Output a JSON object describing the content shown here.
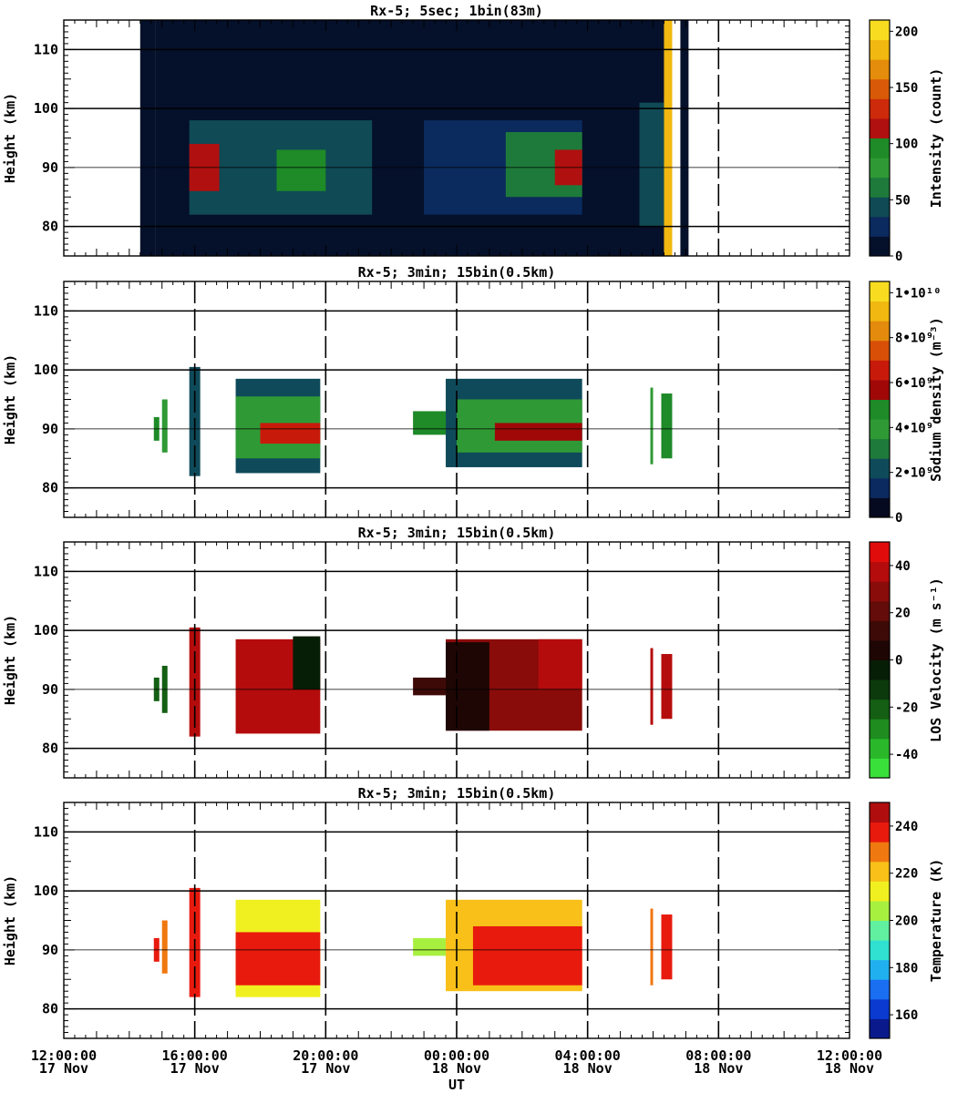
{
  "chart_data": [
    {
      "type": "heatmap",
      "title": "Rx-5;  5sec; 1bin(83m)",
      "ylabel": "Height (km)",
      "ylim": [
        75,
        115
      ],
      "yticks": [
        80,
        90,
        100,
        110
      ],
      "colorbar": {
        "label": "Intensity (count)",
        "range": [
          0,
          210
        ],
        "ticks": [
          "0",
          "50",
          "100",
          "150",
          "200"
        ],
        "tick_values": [
          0,
          50,
          100,
          150,
          200
        ],
        "colors": [
          "#05102a",
          "#0b2a5e",
          "#0f4a55",
          "#1e7a3a",
          "#2f9a35",
          "#1e8a28",
          "#b01010",
          "#cc2a0a",
          "#d85a08",
          "#e48c0c",
          "#f0b810",
          "#f8dc20"
        ]
      },
      "dashed_time_lines": [
        "2008-11-18T08:00"
      ],
      "regions": [
        {
          "x": [
            "2008-11-17T14:20",
            "2008-11-17T14:48"
          ],
          "y": [
            75,
            115
          ],
          "level": 6
        },
        {
          "x": [
            "2008-11-17T14:48",
            "2008-11-18T06:20"
          ],
          "y": [
            75,
            115
          ],
          "level": 3
        },
        {
          "x": [
            "2008-11-17T15:50",
            "2008-11-17T21:25"
          ],
          "y": [
            82,
            98
          ],
          "level": 35
        },
        {
          "x": [
            "2008-11-17T15:50",
            "2008-11-17T16:45"
          ],
          "y": [
            86,
            94
          ],
          "level": 110
        },
        {
          "x": [
            "2008-11-17T18:30",
            "2008-11-17T20:00"
          ],
          "y": [
            86,
            93
          ],
          "level": 95
        },
        {
          "x": [
            "2008-11-17T23:00",
            "2008-11-18T03:50"
          ],
          "y": [
            82,
            98
          ],
          "level": 25
        },
        {
          "x": [
            "2008-11-18T01:30",
            "2008-11-18T03:50"
          ],
          "y": [
            85,
            96
          ],
          "level": 60
        },
        {
          "x": [
            "2008-11-18T03:00",
            "2008-11-18T03:50"
          ],
          "y": [
            87,
            93
          ],
          "level": 115
        },
        {
          "x": [
            "2008-11-18T05:35",
            "2008-11-18T06:20"
          ],
          "y": [
            80,
            101
          ],
          "level": 45
        },
        {
          "x": [
            "2008-11-18T06:20",
            "2008-11-18T06:35"
          ],
          "y": [
            75,
            115
          ],
          "level": 190
        },
        {
          "x": [
            "2008-11-18T06:50",
            "2008-11-18T07:05"
          ],
          "y": [
            75,
            115
          ],
          "level": 0
        }
      ]
    },
    {
      "type": "heatmap",
      "title": "Rx-5; 3min; 15bin(0.5km)",
      "ylabel": "Height (km)",
      "ylim": [
        75,
        115
      ],
      "yticks": [
        80,
        90,
        100,
        110
      ],
      "colorbar": {
        "label": "Sodium density (m⁻³)",
        "range": [
          0,
          10.5
        ],
        "unit": "1e9 m^-3",
        "ticks": [
          "0",
          "2•10⁹",
          "4•10⁹",
          "6•10⁹",
          "8•10⁹",
          "1•10¹⁰"
        ],
        "tick_values": [
          0,
          2,
          4,
          6,
          8,
          10
        ],
        "colors": [
          "#050a20",
          "#0b2a60",
          "#0f4a5a",
          "#1e7a3a",
          "#2f9a35",
          "#1e8a28",
          "#a00808",
          "#c81a0a",
          "#d85008",
          "#e48a0c",
          "#f0b810",
          "#f8dc20"
        ]
      },
      "dashed_time_lines": [
        "2008-11-17T16:00",
        "2008-11-17T20:00",
        "2008-11-18T00:00",
        "2008-11-18T04:00",
        "2008-11-18T08:00"
      ],
      "regions": [
        {
          "x": [
            "2008-11-17T14:45",
            "2008-11-17T14:55"
          ],
          "y": [
            88,
            92
          ],
          "level": 4.5
        },
        {
          "x": [
            "2008-11-17T15:00",
            "2008-11-17T15:10"
          ],
          "y": [
            86,
            95
          ],
          "level": 4.0
        },
        {
          "x": [
            "2008-11-17T15:50",
            "2008-11-17T16:10"
          ],
          "y": [
            82,
            100.5
          ],
          "level": 2.5
        },
        {
          "x": [
            "2008-11-17T17:15",
            "2008-11-17T19:50"
          ],
          "y": [
            82.5,
            98.5
          ],
          "level": 2.0
        },
        {
          "x": [
            "2008-11-17T17:15",
            "2008-11-17T19:50"
          ],
          "y": [
            85,
            95.5
          ],
          "level": 3.5
        },
        {
          "x": [
            "2008-11-17T18:00",
            "2008-11-17T19:50"
          ],
          "y": [
            87.5,
            91
          ],
          "level": 6.5
        },
        {
          "x": [
            "2008-11-17T22:40",
            "2008-11-17T23:40"
          ],
          "y": [
            89,
            93
          ],
          "level": 4.5
        },
        {
          "x": [
            "2008-11-17T23:40",
            "2008-11-18T03:50"
          ],
          "y": [
            83.5,
            98.5
          ],
          "level": 2.0
        },
        {
          "x": [
            "2008-11-18T00:00",
            "2008-11-18T03:50"
          ],
          "y": [
            86,
            95
          ],
          "level": 3.5
        },
        {
          "x": [
            "2008-11-18T01:10",
            "2008-11-18T03:50"
          ],
          "y": [
            88,
            91
          ],
          "level": 6.0
        },
        {
          "x": [
            "2008-11-18T05:55",
            "2008-11-18T06:00"
          ],
          "y": [
            84,
            97
          ],
          "level": 4.0
        },
        {
          "x": [
            "2008-11-18T06:15",
            "2008-11-18T06:35"
          ],
          "y": [
            85,
            96
          ],
          "level": 4.5
        }
      ]
    },
    {
      "type": "heatmap",
      "title": "Rx-5; 3min; 15bin(0.5km)",
      "ylabel": "Height (km)",
      "ylim": [
        75,
        115
      ],
      "yticks": [
        80,
        90,
        100,
        110
      ],
      "colorbar": {
        "label": "LOS Velocity (m s⁻¹)",
        "range": [
          -50,
          50
        ],
        "ticks": [
          "-40",
          "-20",
          "0",
          "20",
          "40"
        ],
        "tick_values": [
          -40,
          -20,
          0,
          20,
          40
        ],
        "colors": [
          "#3ae03a",
          "#2ab82a",
          "#1e8c1e",
          "#145f14",
          "#0c3a0c",
          "#061e06",
          "#1e0604",
          "#3e0a08",
          "#640c0a",
          "#8a0c0a",
          "#b40c0c",
          "#e00c0c"
        ]
      },
      "dashed_time_lines": [
        "2008-11-17T16:00",
        "2008-11-17T20:00",
        "2008-11-18T00:00",
        "2008-11-18T04:00",
        "2008-11-18T08:00"
      ],
      "regions": [
        {
          "x": [
            "2008-11-17T14:45",
            "2008-11-17T14:55"
          ],
          "y": [
            88,
            92
          ],
          "level": -25
        },
        {
          "x": [
            "2008-11-17T15:00",
            "2008-11-17T15:10"
          ],
          "y": [
            86,
            94
          ],
          "level": -20
        },
        {
          "x": [
            "2008-11-17T15:50",
            "2008-11-17T16:10"
          ],
          "y": [
            82,
            100.5
          ],
          "level": 40
        },
        {
          "x": [
            "2008-11-17T17:15",
            "2008-11-17T19:50"
          ],
          "y": [
            82.5,
            98.5
          ],
          "level": 35
        },
        {
          "x": [
            "2008-11-17T19:00",
            "2008-11-17T19:50"
          ],
          "y": [
            90,
            99
          ],
          "level": -5
        },
        {
          "x": [
            "2008-11-17T22:40",
            "2008-11-17T23:40"
          ],
          "y": [
            89,
            92
          ],
          "level": 10
        },
        {
          "x": [
            "2008-11-17T23:40",
            "2008-11-18T03:50"
          ],
          "y": [
            83,
            98.5
          ],
          "level": 25
        },
        {
          "x": [
            "2008-11-17T23:40",
            "2008-11-18T01:00"
          ],
          "y": [
            83,
            98
          ],
          "level": 5
        },
        {
          "x": [
            "2008-11-18T02:30",
            "2008-11-18T03:50"
          ],
          "y": [
            90,
            98.5
          ],
          "level": 40
        },
        {
          "x": [
            "2008-11-18T05:55",
            "2008-11-18T06:00"
          ],
          "y": [
            84,
            97
          ],
          "level": 40
        },
        {
          "x": [
            "2008-11-18T06:15",
            "2008-11-18T06:35"
          ],
          "y": [
            85,
            96
          ],
          "level": 35
        }
      ]
    },
    {
      "type": "heatmap",
      "title": "Rx-5; 3min; 15bin(0.5km)",
      "xlabel": "UT",
      "ylabel": "Height (km)",
      "ylim": [
        75,
        115
      ],
      "yticks": [
        80,
        90,
        100,
        110
      ],
      "xlim": [
        "2008-11-17T12:00",
        "2008-11-18T12:00"
      ],
      "xticks": [
        {
          "t": "2008-11-17T12:00",
          "time": "12:00:00",
          "date": "17 Nov"
        },
        {
          "t": "2008-11-17T16:00",
          "time": "16:00:00",
          "date": "17 Nov"
        },
        {
          "t": "2008-11-17T20:00",
          "time": "20:00:00",
          "date": "17 Nov"
        },
        {
          "t": "2008-11-18T00:00",
          "time": "00:00:00",
          "date": "18 Nov"
        },
        {
          "t": "2008-11-18T04:00",
          "time": "04:00:00",
          "date": "18 Nov"
        },
        {
          "t": "2008-11-18T08:00",
          "time": "08:00:00",
          "date": "18 Nov"
        },
        {
          "t": "2008-11-18T12:00",
          "time": "12:00:00",
          "date": "18 Nov"
        }
      ],
      "colorbar": {
        "label": "Temperature (K)",
        "range": [
          150,
          250
        ],
        "ticks": [
          "160",
          "180",
          "200",
          "220",
          "240"
        ],
        "tick_values": [
          160,
          180,
          200,
          220,
          240
        ],
        "colors": [
          "#0a1a8c",
          "#0a3ad0",
          "#1a6ef0",
          "#20b0f0",
          "#30e0d0",
          "#60f0a0",
          "#a8f040",
          "#f0f020",
          "#f8c018",
          "#f07810",
          "#e81a0e",
          "#b00e0e"
        ]
      },
      "dashed_time_lines": [
        "2008-11-17T16:00",
        "2008-11-17T20:00",
        "2008-11-18T00:00",
        "2008-11-18T04:00",
        "2008-11-18T08:00"
      ],
      "regions": [
        {
          "x": [
            "2008-11-17T14:45",
            "2008-11-17T14:55"
          ],
          "y": [
            88,
            92
          ],
          "level": 235
        },
        {
          "x": [
            "2008-11-17T15:00",
            "2008-11-17T15:10"
          ],
          "y": [
            86,
            95
          ],
          "level": 230
        },
        {
          "x": [
            "2008-11-17T15:50",
            "2008-11-17T16:10"
          ],
          "y": [
            82,
            100.5
          ],
          "level": 238
        },
        {
          "x": [
            "2008-11-17T17:15",
            "2008-11-17T19:50"
          ],
          "y": [
            82,
            98.5
          ],
          "level": 215
        },
        {
          "x": [
            "2008-11-17T17:15",
            "2008-11-17T19:50"
          ],
          "y": [
            84,
            93
          ],
          "level": 238
        },
        {
          "x": [
            "2008-11-17T22:40",
            "2008-11-17T23:40"
          ],
          "y": [
            89,
            92
          ],
          "level": 205
        },
        {
          "x": [
            "2008-11-17T23:40",
            "2008-11-18T03:50"
          ],
          "y": [
            83,
            98.5
          ],
          "level": 218
        },
        {
          "x": [
            "2008-11-18T00:30",
            "2008-11-18T03:50"
          ],
          "y": [
            84,
            94
          ],
          "level": 238
        },
        {
          "x": [
            "2008-11-18T05:55",
            "2008-11-18T06:00"
          ],
          "y": [
            84,
            97
          ],
          "level": 225
        },
        {
          "x": [
            "2008-11-18T06:15",
            "2008-11-18T06:35"
          ],
          "y": [
            85,
            96
          ],
          "level": 238
        }
      ]
    }
  ]
}
